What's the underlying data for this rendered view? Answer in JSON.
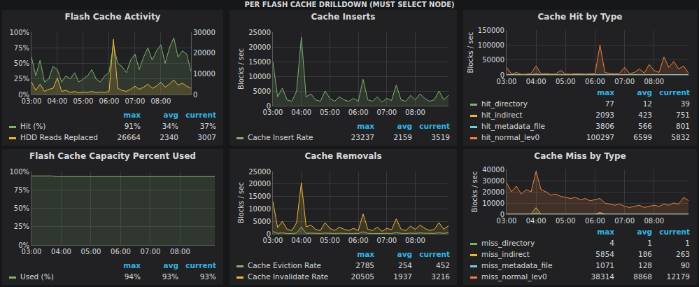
{
  "page_title": "PER FLASH CACHE DRILLDOWN (MUST SELECT NODE)",
  "chart_data": [
    {
      "type": "line",
      "title": "Flash Cache Activity",
      "categories": [
        "03:00",
        null,
        null,
        null,
        null,
        null,
        "04:00",
        null,
        null,
        null,
        null,
        null,
        "05:00",
        null,
        null,
        null,
        null,
        null,
        "06:00",
        null,
        null,
        null,
        null,
        null,
        "07:00",
        null,
        null,
        null,
        null,
        null,
        "08:00",
        null,
        null,
        null,
        null,
        null,
        null,
        null
      ],
      "ylim": [
        0,
        100
      ],
      "yticks": [
        {
          "value": 0,
          "label": "0%"
        },
        {
          "value": 25,
          "label": "25%"
        },
        {
          "value": 50,
          "label": "50%"
        },
        {
          "value": 75,
          "label": "75%"
        },
        {
          "value": 100,
          "label": "100%"
        }
      ],
      "y2lim": [
        0,
        30000
      ],
      "y2ticks": [
        0,
        10000,
        20000,
        30000
      ],
      "grid": true,
      "stat_columns": [
        "max",
        "avg",
        "current"
      ],
      "series": [
        {
          "name": "Hit (%)",
          "color": "#7eb26d",
          "values": [
            60,
            30,
            55,
            20,
            25,
            45,
            40,
            20,
            30,
            25,
            35,
            20,
            25,
            30,
            40,
            25,
            20,
            30,
            35,
            80,
            50,
            45,
            35,
            55,
            65,
            40,
            60,
            75,
            55,
            70,
            80,
            50,
            75,
            91,
            60,
            70,
            65,
            37
          ],
          "stats": [
            {
              "value": 91,
              "label": "91%"
            },
            {
              "value": 34,
              "label": "34%"
            },
            {
              "value": 37,
              "label": "37%"
            }
          ]
        },
        {
          "name": "HDD Reads Replaced",
          "color": "#eab839",
          "axis": "y2",
          "values": [
            6000,
            2000,
            5000,
            1500,
            2500,
            3000,
            8000,
            1500,
            2000,
            1000,
            1500,
            800,
            1200,
            1000,
            1500,
            900,
            1200,
            1000,
            1500,
            26664,
            3000,
            2000,
            1500,
            2500,
            4000,
            2500,
            3500,
            5000,
            3000,
            4000,
            6000,
            3500,
            5000,
            7000,
            4500,
            5500,
            4000,
            3007
          ],
          "stats": [
            26664,
            2340,
            3007
          ]
        }
      ]
    },
    {
      "type": "line",
      "title": "Cache Inserts",
      "y_label": "Blocks / sec",
      "categories": [
        "03:00",
        null,
        null,
        null,
        null,
        null,
        "04:00",
        null,
        null,
        null,
        null,
        null,
        "05:00",
        null,
        null,
        null,
        null,
        null,
        "06:00",
        null,
        null,
        null,
        null,
        null,
        "07:00",
        null,
        null,
        null,
        null,
        null,
        "08:00",
        null,
        null,
        null,
        null,
        null,
        null,
        null
      ],
      "ylim": [
        0,
        25000
      ],
      "yticks": [
        0,
        5000,
        10000,
        15000,
        20000,
        25000
      ],
      "grid": true,
      "stat_columns": [
        "max",
        "avg",
        "current"
      ],
      "series": [
        {
          "name": "Cache Insert Rate",
          "color": "#7eb26d",
          "values": [
            15000,
            3000,
            6000,
            2000,
            1500,
            5000,
            23237,
            3000,
            4000,
            2000,
            1500,
            5000,
            2500,
            1500,
            3000,
            2000,
            1500,
            2500,
            1500,
            9000,
            2000,
            1500,
            3000,
            1200,
            2500,
            1800,
            7000,
            2000,
            1500,
            3500,
            2000,
            4000,
            2500,
            1500,
            2000,
            5000,
            2000,
            3519
          ],
          "stats": [
            23237,
            2159,
            3519
          ]
        }
      ]
    },
    {
      "type": "line",
      "title": "Cache Hit by Type",
      "y_label": "Blocks / sec",
      "categories": [
        "03:00",
        null,
        null,
        null,
        null,
        null,
        "04:00",
        null,
        null,
        null,
        null,
        null,
        "05:00",
        null,
        null,
        null,
        null,
        null,
        "06:00",
        null,
        null,
        null,
        null,
        null,
        "07:00",
        null,
        null,
        null,
        null,
        null,
        "08:00",
        null,
        null,
        null,
        null,
        null,
        null,
        null
      ],
      "ylim": [
        0,
        150000
      ],
      "yticks": [
        0,
        50000,
        100000,
        150000
      ],
      "grid": true,
      "stat_columns": [
        "max",
        "avg",
        "current"
      ],
      "series": [
        {
          "name": "hit_directory",
          "color": "#7eb26d",
          "values": [
            20,
            10,
            15,
            8,
            10,
            12,
            30,
            10,
            12,
            8,
            10,
            12,
            10,
            8,
            12,
            10,
            8,
            10,
            12,
            77,
            15,
            10,
            12,
            10,
            12,
            10,
            15,
            12,
            10,
            12,
            14,
            12,
            15,
            12,
            10,
            14,
            12,
            39
          ],
          "stats": [
            77,
            12,
            39
          ]
        },
        {
          "name": "hit_indirect",
          "color": "#eab839",
          "values": [
            800,
            300,
            500,
            200,
            250,
            400,
            2093,
            300,
            400,
            250,
            300,
            350,
            300,
            250,
            350,
            300,
            250,
            300,
            350,
            1500,
            400,
            350,
            300,
            400,
            450,
            400,
            500,
            450,
            400,
            500,
            550,
            500,
            600,
            550,
            500,
            600,
            550,
            751
          ],
          "stats": [
            2093,
            423,
            751
          ]
        },
        {
          "name": "hit_metadata_file",
          "color": "#6ed0e0",
          "values": [
            1200,
            400,
            600,
            300,
            350,
            500,
            3806,
            400,
            500,
            350,
            400,
            450,
            400,
            350,
            450,
            400,
            350,
            400,
            450,
            2000,
            500,
            450,
            400,
            500,
            550,
            500,
            600,
            550,
            500,
            600,
            700,
            600,
            700,
            650,
            600,
            700,
            650,
            801
          ],
          "stats": [
            3806,
            566,
            801
          ]
        },
        {
          "name": "hit_normal_lev0",
          "color": "#ef843c",
          "values": [
            25000,
            3000,
            8000,
            2000,
            2500,
            5000,
            30000,
            3000,
            5000,
            2500,
            3000,
            15000,
            3000,
            2500,
            4000,
            3000,
            2500,
            3500,
            4000,
            100297,
            8000,
            5000,
            4000,
            6000,
            25000,
            5000,
            8000,
            20000,
            6000,
            35000,
            15000,
            8000,
            60000,
            25000,
            45000,
            20000,
            30000,
            5832
          ],
          "stats": [
            100297,
            6599,
            5832
          ]
        }
      ]
    },
    {
      "type": "line",
      "title": "Flash Cache Capacity Percent Used",
      "categories": [
        "03:00",
        null,
        null,
        null,
        null,
        null,
        "04:00",
        null,
        null,
        null,
        null,
        null,
        "05:00",
        null,
        null,
        null,
        null,
        null,
        "06:00",
        null,
        null,
        null,
        null,
        null,
        "07:00",
        null,
        null,
        null,
        null,
        null,
        "08:00",
        null,
        null,
        null,
        null,
        null,
        null,
        null
      ],
      "ylim": [
        0,
        100
      ],
      "yticks": [
        {
          "value": 0,
          "label": "0%"
        },
        {
          "value": 25,
          "label": "25%"
        },
        {
          "value": 50,
          "label": "50%"
        },
        {
          "value": 75,
          "label": "75%"
        },
        {
          "value": 100,
          "label": "100%"
        }
      ],
      "grid": true,
      "stat_columns": [
        "max",
        "avg",
        "current"
      ],
      "series": [
        {
          "name": "Used (%)",
          "color": "#7eb26d",
          "values": [
            94,
            94,
            94,
            94,
            94,
            93,
            93,
            93,
            93,
            93,
            93,
            93,
            93,
            93,
            93,
            93,
            93,
            93,
            93,
            93,
            93,
            93,
            93,
            93,
            93,
            93,
            93,
            93,
            93,
            93,
            93,
            93,
            93,
            93,
            93,
            93,
            93,
            93
          ],
          "stats": [
            {
              "value": 94,
              "label": "94%"
            },
            {
              "value": 93,
              "label": "93%"
            },
            {
              "value": 93,
              "label": "93%"
            }
          ]
        }
      ]
    },
    {
      "type": "line",
      "title": "Cache Removals",
      "y_label": "Blocks / sec",
      "categories": [
        "03:00",
        null,
        null,
        null,
        null,
        null,
        "04:00",
        null,
        null,
        null,
        null,
        null,
        "05:00",
        null,
        null,
        null,
        null,
        null,
        "06:00",
        null,
        null,
        null,
        null,
        null,
        "07:00",
        null,
        null,
        null,
        null,
        null,
        "08:00",
        null,
        null,
        null,
        null,
        null,
        null,
        null
      ],
      "ylim": [
        0,
        25000
      ],
      "yticks": [
        0,
        5000,
        10000,
        15000,
        20000,
        25000
      ],
      "grid": true,
      "stat_columns": [
        "max",
        "avg",
        "current"
      ],
      "series": [
        {
          "name": "Cache Eviction Rate",
          "color": "#7eb26d",
          "values": [
            1000,
            200,
            400,
            150,
            150,
            300,
            2785,
            200,
            300,
            150,
            150,
            300,
            200,
            150,
            250,
            150,
            150,
            200,
            150,
            800,
            200,
            150,
            250,
            150,
            200,
            150,
            500,
            200,
            150,
            300,
            200,
            350,
            250,
            150,
            200,
            400,
            200,
            452
          ],
          "stats": [
            2785,
            254,
            452
          ]
        },
        {
          "name": "Cache Invalidate Rate",
          "color": "#eab839",
          "values": [
            13000,
            2500,
            5000,
            1800,
            1300,
            4500,
            20505,
            2800,
            3500,
            1800,
            1300,
            4500,
            2200,
            1300,
            2700,
            1800,
            1300,
            2200,
            1300,
            8000,
            1800,
            1300,
            2700,
            1000,
            2200,
            1600,
            6000,
            1800,
            1300,
            3100,
            1800,
            3500,
            2200,
            1300,
            1800,
            4500,
            1800,
            3216
          ],
          "stats": [
            20505,
            1937,
            3216
          ]
        }
      ]
    },
    {
      "type": "line",
      "title": "Cache Miss by Type",
      "y_label": "Blocks / sec",
      "categories": [
        "03:00",
        null,
        null,
        null,
        null,
        null,
        "04:00",
        null,
        null,
        null,
        null,
        null,
        "05:00",
        null,
        null,
        null,
        null,
        null,
        "06:00",
        null,
        null,
        null,
        null,
        null,
        "07:00",
        null,
        null,
        null,
        null,
        null,
        "08:00",
        null,
        null,
        null,
        null,
        null,
        null,
        null
      ],
      "ylim": [
        0,
        40000
      ],
      "yticks": [
        0,
        10000,
        20000,
        30000,
        40000
      ],
      "grid": true,
      "stat_columns": [
        "max",
        "avg",
        "current"
      ],
      "series": [
        {
          "name": "miss_directory",
          "color": "#7eb26d",
          "values": [
            1,
            1,
            1,
            1,
            1,
            1,
            4,
            1,
            1,
            1,
            1,
            1,
            1,
            1,
            1,
            1,
            1,
            1,
            1,
            1,
            1,
            1,
            1,
            1,
            1,
            1,
            1,
            1,
            1,
            1,
            1,
            1,
            1,
            1,
            1,
            1,
            1,
            1
          ],
          "stats": [
            4,
            1,
            1
          ]
        },
        {
          "name": "miss_indirect",
          "color": "#eab839",
          "values": [
            300,
            200,
            250,
            150,
            200,
            250,
            5854,
            200,
            180,
            150,
            170,
            200,
            180,
            160,
            170,
            150,
            160,
            170,
            180,
            1500,
            200,
            180,
            170,
            180,
            190,
            180,
            200,
            190,
            180,
            200,
            210,
            200,
            220,
            210,
            200,
            220,
            210,
            263
          ],
          "stats": [
            5854,
            186,
            263
          ]
        },
        {
          "name": "miss_metadata_file",
          "color": "#6ed0e0",
          "values": [
            200,
            150,
            180,
            100,
            120,
            150,
            1071,
            130,
            120,
            100,
            110,
            130,
            120,
            110,
            120,
            100,
            110,
            120,
            130,
            500,
            130,
            120,
            110,
            120,
            130,
            120,
            140,
            130,
            120,
            140,
            150,
            130,
            140,
            130,
            120,
            130,
            120,
            90
          ],
          "stats": [
            1071,
            128,
            90
          ]
        },
        {
          "name": "miss_normal_lev0",
          "color": "#ef843c",
          "values": [
            28000,
            20000,
            25000,
            18000,
            22000,
            20000,
            38314,
            22000,
            20000,
            17000,
            18000,
            16000,
            15000,
            14000,
            15000,
            13000,
            14000,
            12000,
            13000,
            14000,
            10000,
            9000,
            8000,
            9000,
            7000,
            6000,
            7000,
            8000,
            6000,
            7000,
            8000,
            7000,
            9000,
            8000,
            10000,
            9000,
            15000,
            12179
          ],
          "stats": [
            38314,
            8868,
            12179
          ]
        }
      ]
    }
  ]
}
